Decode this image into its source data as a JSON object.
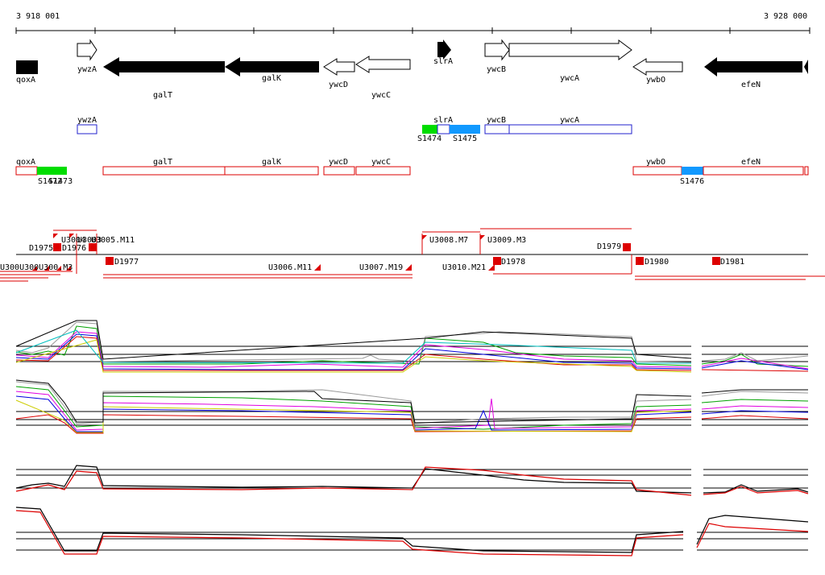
{
  "coordinates": {
    "start": "3 918 001",
    "end": "3 928 000"
  },
  "genes": {
    "qoxA": "qoxA",
    "ywzA": "ywzA",
    "galT": "galT",
    "galK": "galK",
    "ywcD": "ywcD",
    "ywcC": "ywcC",
    "slrA": "slrA",
    "ywcB": "ywcB",
    "ywcA": "ywcA",
    "ywbO": "ywbO",
    "efeN": "efeN"
  },
  "segments": {
    "S1474": "S1474",
    "S1475": "S1475",
    "S1476": "S1476",
    "S1473": "S1473",
    "S1472": "S1472"
  },
  "features": {
    "D1975": "D1975",
    "D1976": "D1976",
    "D1977": "D1977",
    "D1978": "D1978",
    "D1979": "D1979",
    "D1980": "D1980",
    "D1981": "D1981",
    "U3005_M11": "U3005.M11",
    "U3006_M11": "U3006.M11",
    "U3007_M19": "U3007.M19",
    "U3008_M7": "U3008.M7",
    "U3009_M3": "U3009.M3",
    "U3010_M21": "U3010.M21",
    "U3004": "U3004",
    "U3003": "U3003",
    "left_cluster": "U300U300U300.M3"
  },
  "colors": {
    "gene_solid": "#000000",
    "annotation": "#dd0000",
    "upstream_box": "#2222cc",
    "green": "#00dd00",
    "blue": "#1199ff",
    "track_black": "#000000"
  }
}
